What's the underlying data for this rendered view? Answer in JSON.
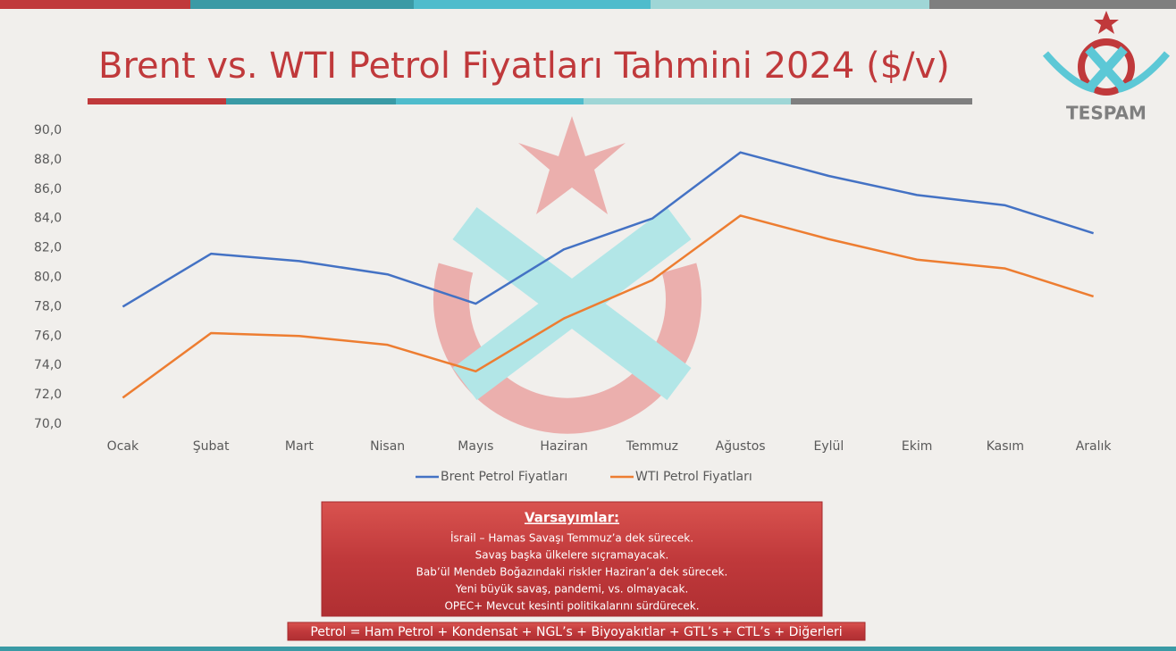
{
  "chart_data": {
    "type": "line",
    "title": "Brent vs. WTI Petrol Fiyatları Tahmini 2024 ($/v)",
    "categories": [
      "Ocak",
      "Şubat",
      "Mart",
      "Nisan",
      "Mayıs",
      "Haziran",
      "Temmuz",
      "Ağustos",
      "Eylül",
      "Ekim",
      "Kasım",
      "Aralık"
    ],
    "series": [
      {
        "name": "Brent Petrol Fiyatları",
        "color": "#4472c4",
        "values": [
          78.0,
          81.6,
          81.1,
          80.2,
          78.2,
          81.9,
          84.0,
          88.5,
          86.9,
          85.6,
          84.9,
          83.0
        ]
      },
      {
        "name": "WTI Petrol Fiyatları",
        "color": "#ed7d31",
        "values": [
          71.8,
          76.2,
          76.0,
          75.4,
          73.6,
          77.2,
          79.8,
          84.2,
          82.6,
          81.2,
          80.6,
          78.7
        ]
      }
    ],
    "ylim": [
      70,
      90
    ],
    "yticks": [
      {
        "value": 70,
        "label": "70,0"
      },
      {
        "value": 72,
        "label": "72,0"
      },
      {
        "value": 74,
        "label": "74,0"
      },
      {
        "value": 76,
        "label": "76,0"
      },
      {
        "value": 78,
        "label": "78,0"
      },
      {
        "value": 80,
        "label": "80,0"
      },
      {
        "value": 82,
        "label": "82,0"
      },
      {
        "value": 84,
        "label": "84,0"
      },
      {
        "value": 86,
        "label": "86,0"
      },
      {
        "value": 88,
        "label": "88,0"
      },
      {
        "value": 90,
        "label": "90,0"
      }
    ],
    "grid": false,
    "legend": "bottom"
  },
  "logo": "TESPAM",
  "notes": {
    "title": "Varsayımlar:",
    "items": [
      "İsrail – Hamas Savaşı Temmuz’a dek sürecek.",
      "Savaş başka ülkelere sıçramayacak.",
      "Bab’ül Mendeb Boğazındaki riskler Haziran’a dek sürecek.",
      "Yeni büyük savaş, pandemi, vs. olmayacak.",
      "OPEC+ Mevcut kesinti politikalarını sürdürecek."
    ]
  },
  "footer": "Petrol = Ham Petrol + Kondensat + NGL’s + Biyoyakıtlar + GTL’s + CTL’s + Diğerleri"
}
